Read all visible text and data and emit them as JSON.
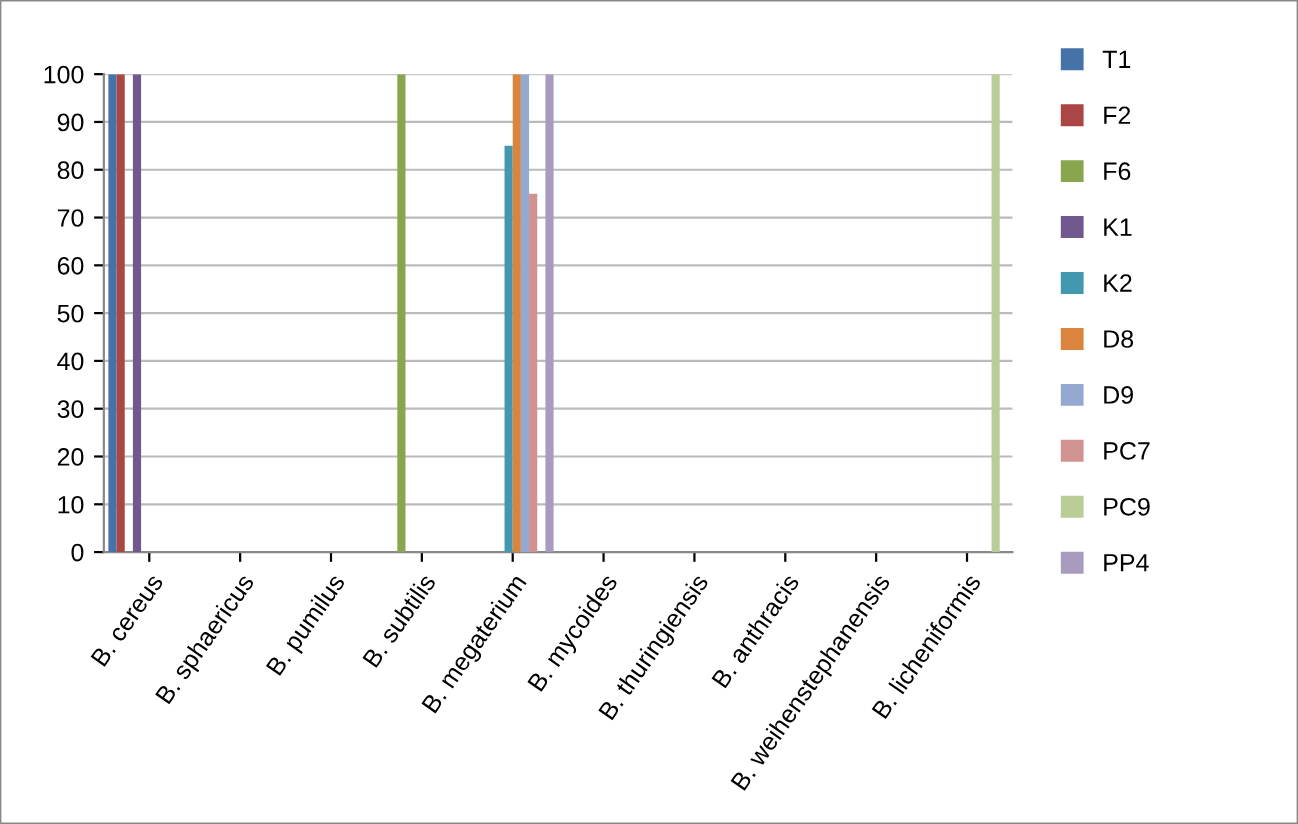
{
  "chart_data": {
    "type": "bar",
    "categories": [
      "B. cereus",
      "B. sphaericus",
      "B. pumilus",
      "B. subtilis",
      "B. megaterium",
      "B. mycoides",
      "B. thuringiensis",
      "B. anthracis",
      "B. weihenstephanensis",
      "B. licheniformis"
    ],
    "series": [
      {
        "name": "T1",
        "color": "#4572a7",
        "values": [
          100,
          0,
          0,
          0,
          0,
          0,
          0,
          0,
          0,
          0
        ]
      },
      {
        "name": "F2",
        "color": "#aa4643",
        "values": [
          100,
          0,
          0,
          0,
          0,
          0,
          0,
          0,
          0,
          0
        ]
      },
      {
        "name": "F6",
        "color": "#89a54e",
        "values": [
          0,
          0,
          0,
          100,
          0,
          0,
          0,
          0,
          0,
          0
        ]
      },
      {
        "name": "K1",
        "color": "#71588f",
        "values": [
          100,
          0,
          0,
          0,
          0,
          0,
          0,
          0,
          0,
          0
        ]
      },
      {
        "name": "K2",
        "color": "#4198af",
        "values": [
          0,
          0,
          0,
          0,
          85,
          0,
          0,
          0,
          0,
          0
        ]
      },
      {
        "name": "D8",
        "color": "#db843d",
        "values": [
          0,
          0,
          0,
          0,
          100,
          0,
          0,
          0,
          0,
          0
        ]
      },
      {
        "name": "D9",
        "color": "#93a9cf",
        "values": [
          0,
          0,
          0,
          0,
          100,
          0,
          0,
          0,
          0,
          0
        ]
      },
      {
        "name": "PC7",
        "color": "#d19392",
        "values": [
          0,
          0,
          0,
          0,
          75,
          0,
          0,
          0,
          0,
          0
        ]
      },
      {
        "name": "PC9",
        "color": "#b9cd96",
        "values": [
          0,
          0,
          0,
          0,
          0,
          0,
          0,
          0,
          0,
          100
        ]
      },
      {
        "name": "PP4",
        "color": "#a99bbd",
        "values": [
          0,
          0,
          0,
          0,
          100,
          0,
          0,
          0,
          0,
          0
        ]
      }
    ],
    "ylim": [
      0,
      100
    ],
    "yticks": [
      0,
      10,
      20,
      30,
      40,
      50,
      60,
      70,
      80,
      90,
      100
    ],
    "grid": "y",
    "legend": "right"
  }
}
